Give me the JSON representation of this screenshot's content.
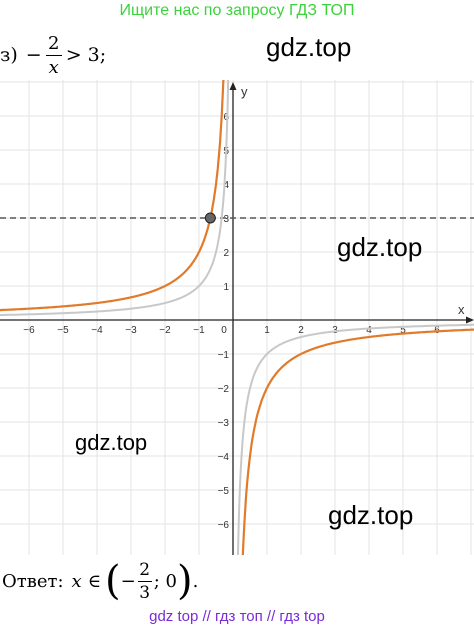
{
  "banner_top": "Ищите нас по запросу ГДЗ ТОП",
  "problem": {
    "number": "з)",
    "minus": "−",
    "numerator": "2",
    "denominator": "x",
    "rest": "> 3;"
  },
  "watermarks": [
    "gdz.top",
    "gdz.top",
    "gdz.top",
    "gdz.top"
  ],
  "graph": {
    "x_axis_label": "x",
    "y_axis_label": "y",
    "x_ticks": [
      "−6",
      "−5",
      "−4",
      "−3",
      "−2",
      "−1",
      "0",
      "1",
      "2",
      "3",
      "4",
      "5",
      "6"
    ],
    "y_ticks": [
      "6",
      "5",
      "4",
      "3",
      "2",
      "1",
      "−1",
      "−2",
      "−3",
      "−4",
      "−5",
      "−6"
    ],
    "colors": {
      "main_curve": "#e07b2c",
      "reference_curve": "#c8c8c8",
      "dashed_line": "#555555",
      "point": "#666666"
    },
    "curves": [
      "y = −2/x",
      "y = −1/x"
    ],
    "dashed_line_y": 3,
    "intersection_point": [
      -0.6667,
      3
    ]
  },
  "answer": {
    "label": "Ответ:",
    "x": "x",
    "in": "∈",
    "minus": "−",
    "numerator": "2",
    "denominator": "3",
    "rest": "; 0"
  },
  "banner_bottom": "gdz top  //  гдз топ  //  гдз top"
}
